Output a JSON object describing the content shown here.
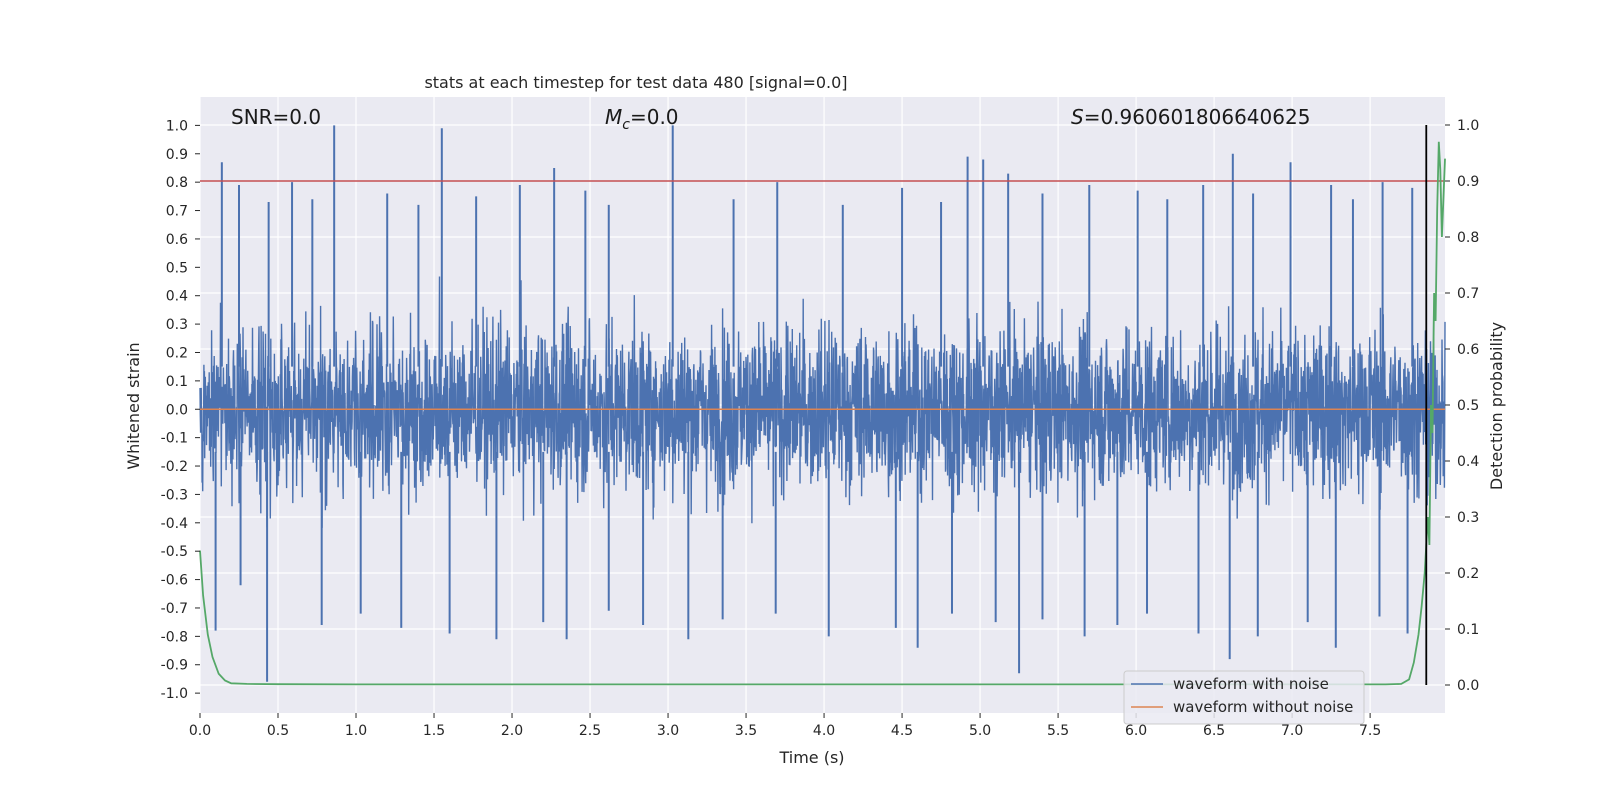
{
  "chart_data": {
    "type": "line",
    "title": "stats at each timestep for test data 480 [signal=0.0]",
    "xlabel": "Time (s)",
    "ylabel": "Whitened strain",
    "y2label": "Detection probability",
    "xlim": [
      0.0,
      7.98
    ],
    "ylim": [
      -1.07,
      1.1
    ],
    "y2lim": [
      -0.05,
      1.05
    ],
    "x_ticks": [
      "0.0",
      "0.5",
      "1.0",
      "1.5",
      "2.0",
      "2.5",
      "3.0",
      "3.5",
      "4.0",
      "4.5",
      "5.0",
      "5.5",
      "6.0",
      "6.5",
      "7.0",
      "7.5"
    ],
    "y_ticks": [
      "1.0",
      "0.9",
      "0.8",
      "0.7",
      "0.6",
      "0.5",
      "0.4",
      "0.3",
      "0.2",
      "0.1",
      "0.0",
      "-0.1",
      "-0.2",
      "-0.3",
      "-0.4",
      "-0.5",
      "-0.6",
      "-0.7",
      "-0.8",
      "-0.9",
      "-1.0"
    ],
    "y2_ticks": [
      "1.0",
      "0.9",
      "0.8",
      "0.7",
      "0.6",
      "0.5",
      "0.4",
      "0.3",
      "0.2",
      "0.1",
      "0.0"
    ],
    "annotations": {
      "snr": "SNR=0.0",
      "mc_symbol": "M",
      "mc_sub": "c",
      "mc_value": "=0.0",
      "s_symbol": "S",
      "s_value": "=0.960601806640625"
    },
    "threshold_line": {
      "axis": "right",
      "value": 0.9,
      "color": "#c44e52"
    },
    "vertical_marker": {
      "x": 7.86,
      "y2_from": 0.0,
      "y2_to": 1.0,
      "color": "#000000"
    },
    "series": [
      {
        "name": "waveform with noise",
        "axis": "left",
        "color": "#4c72b0",
        "description": "dense white-noise strain, bulk within about ±0.5, peaks near ±1.0",
        "peaks_x": [
          0.14,
          0.25,
          0.44,
          0.59,
          0.72,
          0.86,
          1.2,
          1.4,
          1.55,
          1.77,
          2.05,
          2.27,
          2.47,
          2.62,
          3.03,
          3.42,
          3.7,
          4.12,
          4.5,
          4.75,
          4.92,
          5.02,
          5.18,
          5.4,
          5.7,
          6.01,
          6.2,
          6.43,
          6.62,
          6.75,
          6.99,
          7.25,
          7.39,
          7.58,
          7.77
        ],
        "peaks_y": [
          0.87,
          0.79,
          0.73,
          0.8,
          0.74,
          1.0,
          0.76,
          0.72,
          0.99,
          0.75,
          0.79,
          0.85,
          0.77,
          0.72,
          1.0,
          0.74,
          0.8,
          0.72,
          0.78,
          0.73,
          0.89,
          0.88,
          0.83,
          0.76,
          0.79,
          0.77,
          0.74,
          0.79,
          0.9,
          0.76,
          0.87,
          0.79,
          0.74,
          0.8,
          0.78
        ],
        "troughs_x": [
          0.1,
          0.26,
          0.43,
          0.78,
          1.03,
          1.29,
          1.6,
          1.9,
          2.2,
          2.35,
          2.62,
          2.84,
          3.13,
          3.35,
          3.69,
          4.03,
          4.46,
          4.6,
          4.82,
          5.1,
          5.25,
          5.4,
          5.67,
          5.88,
          6.07,
          6.4,
          6.6,
          6.78,
          7.1,
          7.28,
          7.56,
          7.74
        ],
        "troughs_y": [
          -0.78,
          -0.62,
          -0.96,
          -0.76,
          -0.72,
          -0.77,
          -0.79,
          -0.81,
          -0.75,
          -0.81,
          -0.71,
          -0.76,
          -0.81,
          -0.74,
          -0.72,
          -0.8,
          -0.77,
          -0.84,
          -0.72,
          -0.75,
          -0.93,
          -0.74,
          -0.8,
          -0.76,
          -0.72,
          -0.79,
          -0.88,
          -0.8,
          -0.75,
          -0.84,
          -0.73,
          -0.79
        ]
      },
      {
        "name": "waveform without noise",
        "axis": "left",
        "color": "#dd8452",
        "x": [
          0.0,
          7.98
        ],
        "y": [
          0.0,
          0.0
        ]
      },
      {
        "name": "detection probability",
        "axis": "right",
        "color": "#55a868",
        "x": [
          0.0,
          0.02,
          0.05,
          0.08,
          0.12,
          0.16,
          0.2,
          0.3,
          0.5,
          1.0,
          2.0,
          4.0,
          6.0,
          7.0,
          7.6,
          7.7,
          7.75,
          7.78,
          7.81,
          7.83,
          7.85,
          7.87,
          7.88,
          7.89,
          7.9,
          7.91,
          7.92,
          7.93,
          7.94,
          7.95,
          7.96,
          7.98
        ],
        "y": [
          0.24,
          0.16,
          0.09,
          0.05,
          0.02,
          0.008,
          0.003,
          0.002,
          0.0015,
          0.001,
          0.001,
          0.001,
          0.001,
          0.001,
          0.001,
          0.002,
          0.01,
          0.04,
          0.09,
          0.14,
          0.2,
          0.3,
          0.25,
          0.5,
          0.45,
          0.7,
          0.65,
          0.85,
          0.97,
          0.92,
          0.8,
          0.94
        ]
      }
    ],
    "legend": {
      "position": "lower-right",
      "entries": [
        "waveform with noise",
        "waveform without noise"
      ]
    }
  }
}
